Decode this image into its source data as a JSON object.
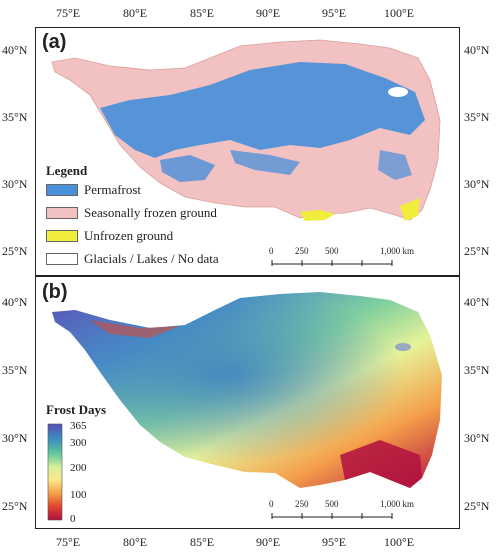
{
  "axes": {
    "lon_labels": [
      "75°E",
      "80°E",
      "85°E",
      "90°E",
      "95°E",
      "100°E"
    ],
    "lat_labels": [
      "40°N",
      "35°N",
      "30°N",
      "25°N"
    ]
  },
  "panel_a": {
    "label": "(a)",
    "legend": {
      "title": "Legend",
      "items": [
        {
          "label": "Permafrost",
          "color": "#4a8fd9"
        },
        {
          "label": "Seasonally frozen ground",
          "color": "#f2c1c1"
        },
        {
          "label": "Unfrozen ground",
          "color": "#f0ee3a"
        },
        {
          "label": "Glacials / Lakes / No data",
          "color": "#ffffff"
        }
      ]
    },
    "scalebar": {
      "ticks": [
        "0",
        "250",
        "500",
        "1,000 km"
      ]
    }
  },
  "panel_b": {
    "label": "(b)",
    "colorbar": {
      "title": "Frost Days",
      "ticks": [
        "365",
        "300",
        "200",
        "100",
        "0"
      ],
      "colors": [
        "#5b4fb8",
        "#3b8bc0",
        "#5cc59c",
        "#d8ef9a",
        "#fbe88a",
        "#f5a04a",
        "#e0452f",
        "#b0103e"
      ]
    },
    "scalebar": {
      "ticks": [
        "0",
        "250",
        "500",
        "1,000 km"
      ]
    }
  }
}
